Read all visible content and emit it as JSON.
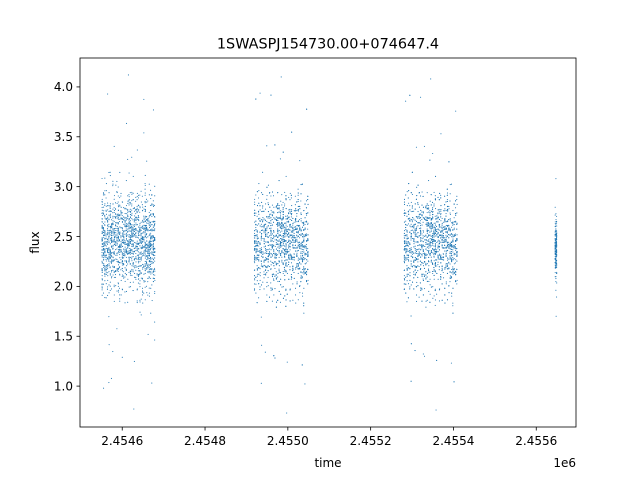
{
  "chart_data": {
    "type": "scatter",
    "title": "1SWASPJ154730.00+074647.4",
    "xlabel": "time",
    "ylabel": "flux",
    "x_offset_label": "1e6",
    "xlim": [
      2454498,
      2455696
    ],
    "ylim": [
      0.59,
      4.29
    ],
    "x_ticks": [
      2454600,
      2454800,
      2455000,
      2455200,
      2455400,
      2455600
    ],
    "x_tick_labels": [
      "2.4546",
      "2.4548",
      "2.4550",
      "2.4552",
      "2.4554",
      "2.4556"
    ],
    "y_ticks": [
      1.0,
      1.5,
      2.0,
      2.5,
      3.0,
      3.5,
      4.0
    ],
    "y_tick_labels": [
      "1.0",
      "1.5",
      "2.0",
      "2.5",
      "3.0",
      "3.5",
      "4.0"
    ],
    "grid": false,
    "marker_color": "#1f77b4",
    "series": [
      {
        "observing_seasons": [
          {
            "x_range": [
              2454550,
              2454680
            ],
            "median_flux": 2.45,
            "flux_range": [
              0.77,
              4.12
            ]
          },
          {
            "x_range": [
              2454918,
              2455050
            ],
            "median_flux": 2.45,
            "flux_range": [
              0.73,
              4.1
            ]
          },
          {
            "x_range": [
              2455280,
              2455410
            ],
            "median_flux": 2.45,
            "flux_range": [
              0.76,
              4.08
            ]
          },
          {
            "x_range": [
              2455645,
              2455650
            ],
            "median_flux": 2.4,
            "flux_range": [
              1.7,
              3.08
            ]
          }
        ]
      }
    ]
  }
}
